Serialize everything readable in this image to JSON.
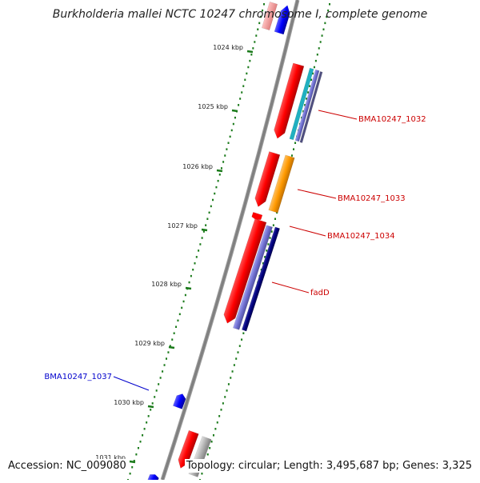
{
  "title": "Burkholderia mallei NCTC 10247 chromosome I, complete genome",
  "footer": {
    "accession": "Accession: NC_009080",
    "summary": "Topology: circular; Length: 3,495,687 bp; Genes: 3,325"
  },
  "ticks": [
    {
      "label": "1024 kbp"
    },
    {
      "label": "1025 kbp"
    },
    {
      "label": "1026 kbp"
    },
    {
      "label": "1027 kbp"
    },
    {
      "label": "1028 kbp"
    },
    {
      "label": "1029 kbp"
    },
    {
      "label": "1030 kbp"
    },
    {
      "label": "1031 kbp"
    }
  ],
  "gene_labels": [
    {
      "name": "BMA10247_1032",
      "color": "#cc0000"
    },
    {
      "name": "BMA10247_1033",
      "color": "#cc0000"
    },
    {
      "name": "BMA10247_1034",
      "color": "#cc0000"
    },
    {
      "name": "fadD",
      "color": "#cc0000"
    },
    {
      "name": "BMA10247_1037",
      "color": "#0000cc"
    }
  ],
  "colors": {
    "backbone": "#808080",
    "tick": "#1a7a1a",
    "forward_gene": "#ff0000",
    "reverse_gene": "#0000ff",
    "cyan_track": "#20b0c0",
    "purple_track": "#7070d0",
    "orange_track": "#ff9900",
    "navy_track": "#000080",
    "gray_track": "#b0b0b0"
  }
}
